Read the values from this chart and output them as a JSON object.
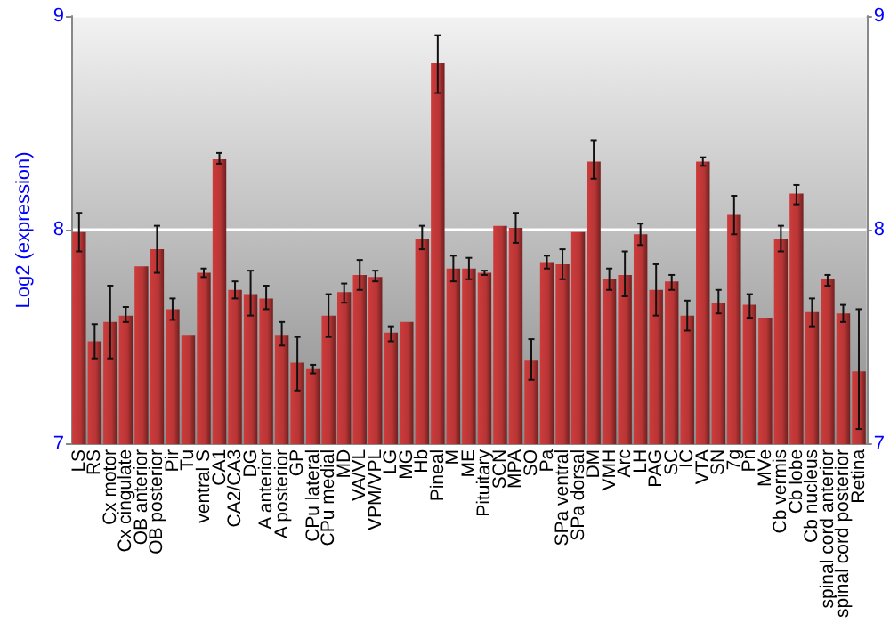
{
  "chart_data": {
    "type": "bar",
    "ylabel": "Log2 (expression)",
    "categories": [
      "LS",
      "RS",
      "Cx motor",
      "Cx cingulate",
      "OB anterior",
      "OB posterior",
      "Pir",
      "Tu",
      "ventral S",
      "CA1",
      "CA2/CA3",
      "DG",
      "A anterior",
      "A posterior",
      "GP",
      "CPu lateral",
      "CPu medial",
      "MD",
      "VA/VL",
      "VPM/VPL",
      "LG",
      "MG",
      "Hb",
      "Pineal",
      "M",
      "ME",
      "Pituitary",
      "SCN",
      "MPA",
      "SO",
      "Pa",
      "SPa ventral",
      "SPa dorsal",
      "DM",
      "VMH",
      "Arc",
      "LH",
      "PAG",
      "SC",
      "IC",
      "VTA",
      "SN",
      "7g",
      "Pn",
      "MVe",
      "Cb vermis",
      "Cb lobe",
      "Cb nucleus",
      "spinal cord anterior",
      "spinal cord posterior",
      "Retina"
    ],
    "series": [
      {
        "color": "#b83535",
        "values": [
          7.99,
          7.48,
          7.57,
          7.6,
          7.83,
          7.91,
          7.63,
          7.51,
          7.8,
          8.33,
          7.72,
          7.7,
          7.68,
          7.51,
          7.38,
          7.35,
          7.6,
          7.71,
          7.79,
          7.78,
          7.52,
          7.57,
          7.96,
          8.78,
          7.82,
          7.82,
          7.8,
          8.02,
          8.01,
          7.39,
          7.85,
          7.84,
          7.99,
          8.32,
          7.77,
          7.79,
          7.98,
          7.72,
          7.76,
          7.6,
          8.32,
          7.66,
          8.07,
          7.65,
          7.59,
          7.96,
          8.17,
          7.62,
          7.77,
          7.61,
          7.34
        ],
        "errors": [
          [
            7.9,
            8.08
          ],
          [
            7.4,
            7.56
          ],
          [
            7.4,
            7.74
          ],
          [
            7.57,
            7.64
          ],
          null,
          [
            7.8,
            8.02
          ],
          [
            7.58,
            7.68
          ],
          null,
          [
            7.78,
            7.82
          ],
          [
            8.31,
            8.36
          ],
          [
            7.68,
            7.76
          ],
          [
            7.6,
            7.81
          ],
          [
            7.63,
            7.74
          ],
          [
            7.46,
            7.57
          ],
          [
            7.25,
            7.5
          ],
          [
            7.33,
            7.37
          ],
          [
            7.5,
            7.7
          ],
          [
            7.66,
            7.75
          ],
          [
            7.72,
            7.86
          ],
          [
            7.76,
            7.81
          ],
          [
            7.48,
            7.55
          ],
          null,
          [
            7.91,
            8.02
          ],
          [
            8.64,
            8.91
          ],
          [
            7.76,
            7.88
          ],
          [
            7.77,
            7.87
          ],
          [
            7.79,
            7.81
          ],
          null,
          [
            7.94,
            8.08
          ],
          [
            7.3,
            7.49
          ],
          [
            7.82,
            7.88
          ],
          [
            7.77,
            7.91
          ],
          null,
          [
            8.24,
            8.42
          ],
          [
            7.72,
            7.82
          ],
          [
            7.69,
            7.9
          ],
          [
            7.93,
            8.03
          ],
          [
            7.6,
            7.84
          ],
          [
            7.72,
            7.79
          ],
          [
            7.53,
            7.67
          ],
          [
            8.3,
            8.34
          ],
          [
            7.61,
            7.72
          ],
          [
            7.98,
            8.16
          ],
          [
            7.59,
            7.7
          ],
          null,
          [
            7.9,
            8.02
          ],
          [
            8.12,
            8.21
          ],
          [
            7.55,
            7.68
          ],
          [
            7.74,
            7.79
          ],
          [
            7.57,
            7.65
          ],
          [
            7.07,
            7.63
          ]
        ]
      }
    ],
    "ylim": [
      7,
      9
    ],
    "yticks": [
      7,
      8,
      9
    ],
    "y2lim": [
      7,
      9
    ],
    "y2ticks": [
      7,
      8,
      9
    ],
    "grid": "y"
  }
}
